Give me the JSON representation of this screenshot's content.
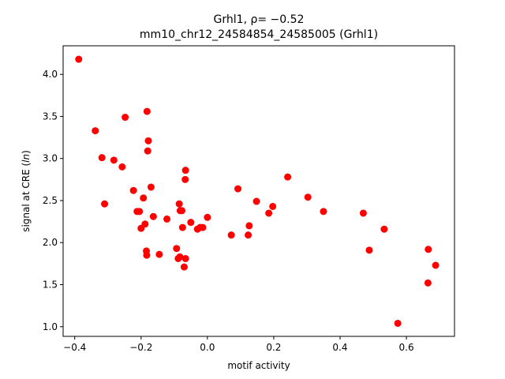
{
  "chart_data": {
    "type": "scatter",
    "title_line1": "Grhl1, ρ= −0.52",
    "title_line2": "mm10_chr12_24584854_24585005 (Grhl1)",
    "xlabel": "motif activity",
    "ylabel": "signal at CRE (ln)",
    "xlim": [
      -0.435,
      0.745
    ],
    "ylim": [
      0.885,
      4.34
    ],
    "xticks": [
      -0.4,
      -0.2,
      0.0,
      0.2,
      0.4,
      0.6
    ],
    "xtick_labels": [
      "−0.4",
      "−0.2",
      "0.0",
      "0.2",
      "0.4",
      "0.6"
    ],
    "yticks": [
      1.0,
      1.5,
      2.0,
      2.5,
      3.0,
      3.5,
      4.0
    ],
    "ytick_labels": [
      "1.0",
      "1.5",
      "2.0",
      "2.5",
      "3.0",
      "3.5",
      "4.0"
    ],
    "grid": false,
    "marker_color": "#ff0000",
    "points": [
      {
        "x": -0.388,
        "y": 4.18
      },
      {
        "x": -0.338,
        "y": 3.33
      },
      {
        "x": -0.318,
        "y": 3.01
      },
      {
        "x": -0.31,
        "y": 2.46
      },
      {
        "x": -0.282,
        "y": 2.98
      },
      {
        "x": -0.257,
        "y": 2.9
      },
      {
        "x": -0.248,
        "y": 3.49
      },
      {
        "x": -0.223,
        "y": 2.62
      },
      {
        "x": -0.212,
        "y": 2.37
      },
      {
        "x": -0.205,
        "y": 2.37
      },
      {
        "x": -0.2,
        "y": 2.17
      },
      {
        "x": -0.193,
        "y": 2.53
      },
      {
        "x": -0.188,
        "y": 2.22
      },
      {
        "x": -0.184,
        "y": 1.9
      },
      {
        "x": -0.183,
        "y": 1.85
      },
      {
        "x": -0.182,
        "y": 3.56
      },
      {
        "x": -0.18,
        "y": 3.09
      },
      {
        "x": -0.178,
        "y": 3.21
      },
      {
        "x": -0.17,
        "y": 2.66
      },
      {
        "x": -0.163,
        "y": 2.31
      },
      {
        "x": -0.145,
        "y": 1.86
      },
      {
        "x": -0.122,
        "y": 2.28
      },
      {
        "x": -0.093,
        "y": 1.93
      },
      {
        "x": -0.088,
        "y": 1.81
      },
      {
        "x": -0.085,
        "y": 2.46
      },
      {
        "x": -0.083,
        "y": 1.83
      },
      {
        "x": -0.082,
        "y": 2.38
      },
      {
        "x": -0.077,
        "y": 2.38
      },
      {
        "x": -0.075,
        "y": 2.18
      },
      {
        "x": -0.07,
        "y": 1.71
      },
      {
        "x": -0.067,
        "y": 2.75
      },
      {
        "x": -0.066,
        "y": 2.86
      },
      {
        "x": -0.066,
        "y": 1.81
      },
      {
        "x": -0.05,
        "y": 2.24
      },
      {
        "x": -0.03,
        "y": 2.16
      },
      {
        "x": -0.022,
        "y": 2.18
      },
      {
        "x": -0.014,
        "y": 2.18
      },
      {
        "x": 0.0,
        "y": 2.3
      },
      {
        "x": 0.072,
        "y": 2.09
      },
      {
        "x": 0.092,
        "y": 2.64
      },
      {
        "x": 0.123,
        "y": 2.09
      },
      {
        "x": 0.126,
        "y": 2.2
      },
      {
        "x": 0.148,
        "y": 2.49
      },
      {
        "x": 0.185,
        "y": 2.35
      },
      {
        "x": 0.197,
        "y": 2.43
      },
      {
        "x": 0.242,
        "y": 2.78
      },
      {
        "x": 0.303,
        "y": 2.54
      },
      {
        "x": 0.35,
        "y": 2.37
      },
      {
        "x": 0.47,
        "y": 2.35
      },
      {
        "x": 0.488,
        "y": 1.91
      },
      {
        "x": 0.533,
        "y": 2.16
      },
      {
        "x": 0.574,
        "y": 1.04
      },
      {
        "x": 0.665,
        "y": 1.52
      },
      {
        "x": 0.666,
        "y": 1.92
      },
      {
        "x": 0.688,
        "y": 1.73
      }
    ]
  }
}
